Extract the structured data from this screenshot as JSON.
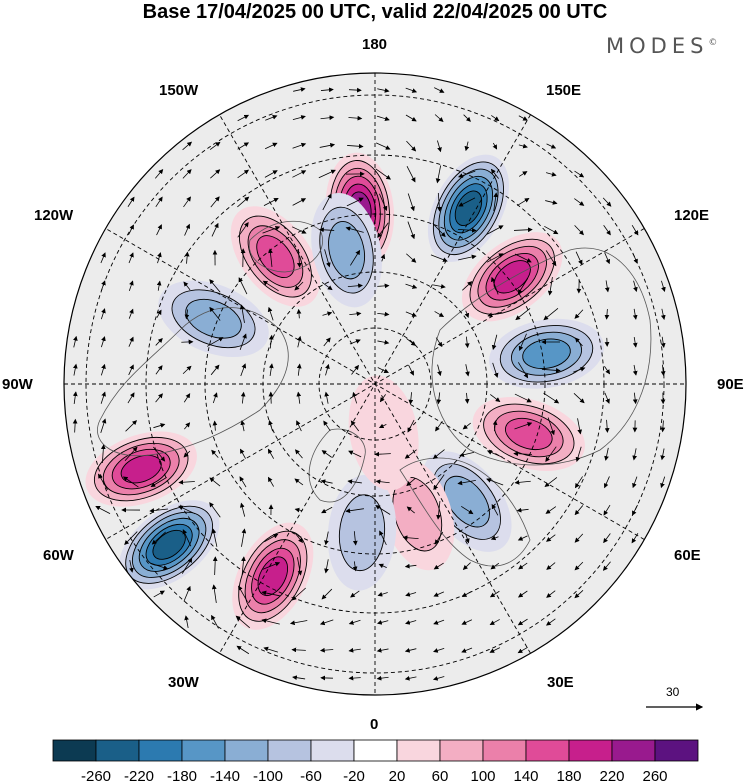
{
  "title": "Base 17/04/2025 00 UTC, valid 22/04/2025 00 UTC",
  "brand": "MODES",
  "brand_mark": "©",
  "longitude_labels": {
    "n180": "180",
    "e150": "150E",
    "e120": "120E",
    "e90": "90E",
    "e60": "60E",
    "e30": "30E",
    "n0": "0",
    "w30": "30W",
    "w60": "60W",
    "w90": "90W",
    "w120": "120W",
    "w150": "150W"
  },
  "reference_vector": {
    "value": "30"
  },
  "colorbar": {
    "colors": [
      "#0c3a52",
      "#1a5f88",
      "#2c7ab0",
      "#5796c6",
      "#8aaed4",
      "#b6c3e0",
      "#dcdded",
      "#ffffff",
      "#f9d6de",
      "#f3aec3",
      "#eb80aa",
      "#e04b98",
      "#c71f8c",
      "#991a8e",
      "#5c1280"
    ],
    "tick_labels": [
      "-260",
      "-220",
      "-180",
      "-140",
      "-100",
      "-60",
      "-20",
      "20",
      "60",
      "100",
      "140",
      "180",
      "220",
      "260"
    ]
  },
  "anomaly_centers": [
    {
      "lon": 185,
      "lat": 62,
      "value": 230
    },
    {
      "lon": 152,
      "lat": 58,
      "value": -245
    },
    {
      "lon": 128,
      "lat": 62,
      "value": 215
    },
    {
      "lon": 100,
      "lat": 62,
      "value": -160
    },
    {
      "lon": 72,
      "lat": 64,
      "value": 150
    },
    {
      "lon": 38,
      "lat": 66,
      "value": -110
    },
    {
      "lon": 18,
      "lat": 68,
      "value": 60
    },
    {
      "lon": -5,
      "lat": 66,
      "value": -80
    },
    {
      "lon": -28,
      "lat": 55,
      "value": 210
    },
    {
      "lon": -52,
      "lat": 48,
      "value": -255
    },
    {
      "lon": -70,
      "lat": 50,
      "value": 180
    },
    {
      "lon": -112,
      "lat": 62,
      "value": -100
    },
    {
      "lon": -142,
      "lat": 64,
      "value": 160
    },
    {
      "lon": -168,
      "lat": 68,
      "value": -130
    },
    {
      "lon": 10,
      "lat": 82,
      "value": 40
    }
  ]
}
